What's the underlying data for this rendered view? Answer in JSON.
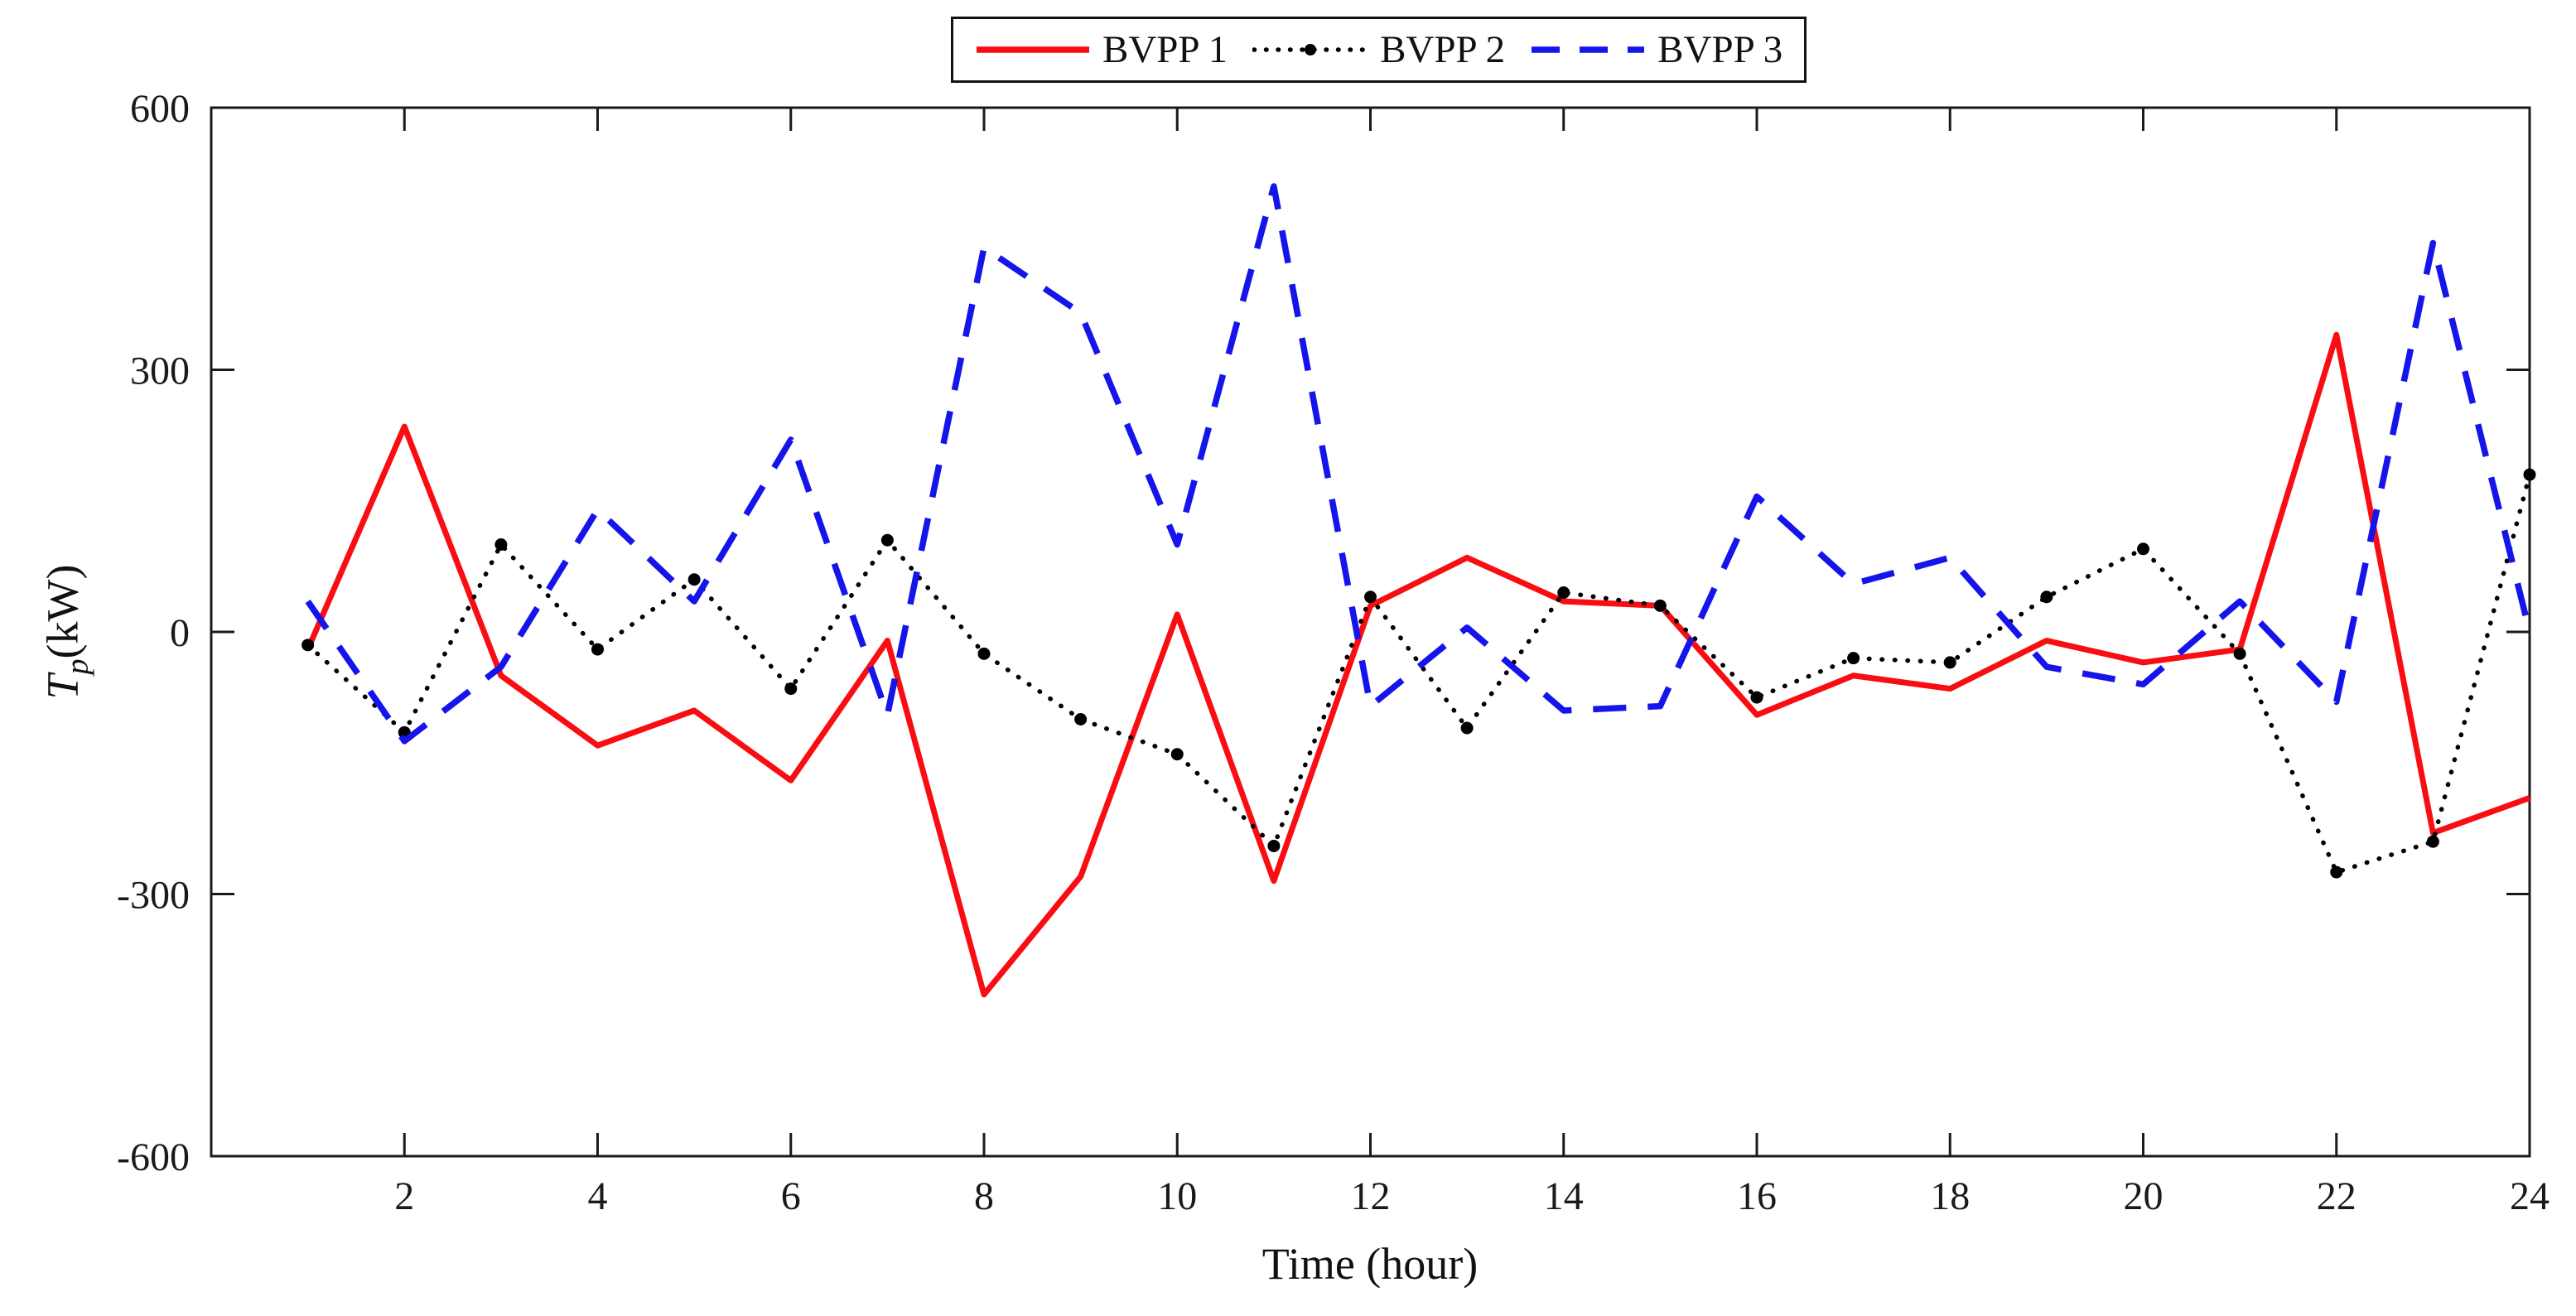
{
  "figure": {
    "background": "#ffffff",
    "frame_color": "#1a1a1a"
  },
  "chart_data": {
    "type": "line",
    "title": "",
    "xlabel": "Time (hour)",
    "ylabel": "Tp (kW)",
    "ylabel_parts": {
      "var": "T",
      "sub": "p",
      "unit": "(kW)"
    },
    "xlim": [
      0,
      24
    ],
    "ylim": [
      -600,
      600
    ],
    "grid": false,
    "legend_position": "top-center-outside",
    "x": [
      1,
      2,
      3,
      4,
      5,
      6,
      7,
      8,
      9,
      10,
      11,
      12,
      13,
      14,
      15,
      16,
      17,
      18,
      19,
      20,
      21,
      22,
      23,
      24
    ],
    "x_tick_values": [
      2,
      4,
      6,
      8,
      10,
      12,
      14,
      16,
      18,
      20,
      22,
      24
    ],
    "x_tick_labels": [
      "2",
      "4",
      "6",
      "8",
      "10",
      "12",
      "14",
      "16",
      "18",
      "20",
      "22",
      "24"
    ],
    "y_tick_values": [
      -600,
      -300,
      0,
      300,
      600
    ],
    "y_tick_labels": [
      "-600",
      "-300",
      "0",
      "300",
      "600"
    ],
    "series": [
      {
        "name": "BVPP 1",
        "color": "#fa0d12",
        "style": "solid",
        "values": [
          -20,
          235,
          -50,
          -130,
          -90,
          -170,
          -10,
          -415,
          -280,
          20,
          -285,
          30,
          85,
          35,
          30,
          -95,
          -50,
          -65,
          -10,
          -35,
          -20,
          340,
          -230,
          -190
        ]
      },
      {
        "name": "BVPP 2",
        "color": "#000000",
        "style": "dotted",
        "values": [
          -15,
          -115,
          100,
          -20,
          60,
          -65,
          105,
          -25,
          -100,
          -140,
          -245,
          40,
          -110,
          45,
          30,
          -75,
          -30,
          -35,
          40,
          95,
          -25,
          -275,
          -240,
          180
        ]
      },
      {
        "name": "BVPP 3",
        "color": "#1414eb",
        "style": "dashed",
        "values": [
          35,
          -125,
          -40,
          140,
          35,
          220,
          -95,
          440,
          365,
          100,
          510,
          -85,
          5,
          -90,
          -85,
          155,
          55,
          85,
          -40,
          -60,
          35,
          -80,
          445,
          0
        ]
      }
    ]
  }
}
